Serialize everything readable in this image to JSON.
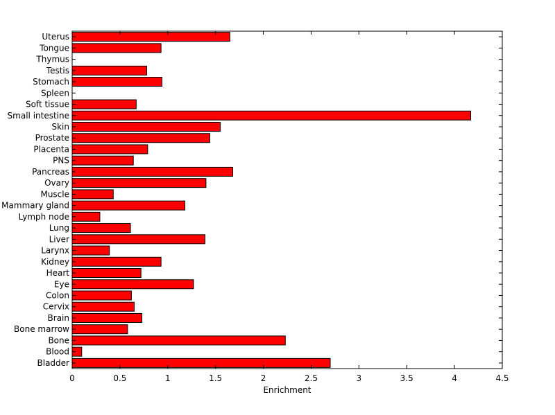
{
  "chart_data": {
    "type": "bar",
    "orientation": "horizontal",
    "title": "",
    "xlabel": "Enrichment",
    "ylabel": "",
    "xlim": [
      0,
      4.5
    ],
    "xticks": [
      "0",
      "0.5",
      "1",
      "1.5",
      "2",
      "2.5",
      "3",
      "3.5",
      "4",
      "4.5"
    ],
    "grid": false,
    "bar_color": "#ff0000",
    "bar_edge_color": "#000000",
    "categories": [
      "Bladder",
      "Blood",
      "Bone",
      "Bone marrow",
      "Brain",
      "Cervix",
      "Colon",
      "Eye",
      "Heart",
      "Kidney",
      "Larynx",
      "Liver",
      "Lung",
      "Lymph node",
      "Mammary gland",
      "Muscle",
      "Ovary",
      "Pancreas",
      "PNS",
      "Placenta",
      "Prostate",
      "Skin",
      "Small intestine",
      "Soft tissue",
      "Spleen",
      "Stomach",
      "Testis",
      "Thymus",
      "Tongue",
      "Uterus"
    ],
    "values": [
      2.7,
      0.1,
      2.23,
      0.58,
      0.73,
      0.65,
      0.62,
      1.27,
      0.72,
      0.93,
      0.39,
      1.39,
      0.61,
      0.29,
      1.18,
      0.43,
      1.4,
      1.68,
      0.64,
      0.79,
      1.44,
      1.55,
      4.17,
      0.67,
      0.0,
      0.94,
      0.78,
      0.0,
      0.93,
      1.65
    ]
  }
}
